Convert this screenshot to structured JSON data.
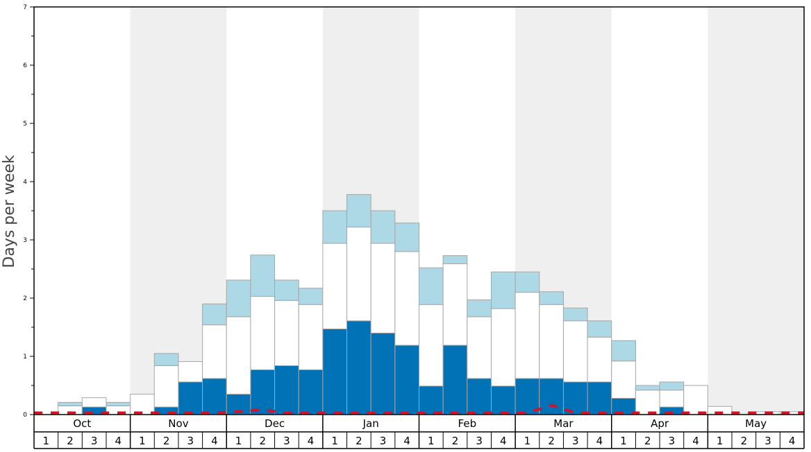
{
  "chart_data": {
    "type": "bar",
    "ylabel": "Days per week",
    "ylim": [
      0,
      7
    ],
    "y_ticks": [
      "0",
      "1",
      "2",
      "3",
      "4",
      "5",
      "6",
      "7"
    ],
    "months": [
      "Oct",
      "Nov",
      "Dec",
      "Jan",
      "Feb",
      "Mar",
      "Apr",
      "May"
    ],
    "week_labels": [
      "1",
      "2",
      "3",
      "4"
    ],
    "shaded_months": [
      "Nov",
      "Jan",
      "Mar",
      "May"
    ],
    "stacked": true,
    "series": [
      {
        "color": "#0072b5",
        "values": [
          0,
          0,
          0.13,
          0,
          0,
          0.13,
          0.56,
          0.62,
          0.35,
          0.77,
          0.84,
          0.77,
          1.47,
          1.61,
          1.4,
          1.19,
          0.49,
          1.19,
          0.62,
          0.49,
          0.62,
          0.62,
          0.56,
          0.56,
          0.28,
          0,
          0.13,
          0,
          0,
          0,
          0,
          0
        ]
      },
      {
        "color": "#ffffff",
        "values": [
          0,
          0.15,
          0.16,
          0.15,
          0.35,
          0.71,
          0.35,
          0.92,
          1.33,
          1.26,
          1.12,
          1.12,
          1.47,
          1.61,
          1.54,
          1.61,
          1.4,
          1.4,
          1.06,
          1.33,
          1.48,
          1.27,
          1.05,
          0.77,
          0.64,
          0.42,
          0.29,
          0.5,
          0.14,
          0,
          0.05,
          0.05
        ]
      },
      {
        "color": "#add8e6",
        "values": [
          0,
          0.06,
          0,
          0.06,
          0,
          0.21,
          0,
          0.36,
          0.63,
          0.71,
          0.35,
          0.28,
          0.56,
          0.56,
          0.56,
          0.49,
          0.63,
          0.14,
          0.29,
          0.63,
          0.35,
          0.22,
          0.22,
          0.28,
          0.35,
          0.08,
          0.14,
          0,
          0,
          0,
          0,
          0
        ]
      }
    ],
    "dashed_line": {
      "color": "#d0142c",
      "values": [
        0.03,
        0.03,
        0.03,
        0.03,
        0.03,
        0.03,
        0.03,
        0.03,
        0.05,
        0.08,
        0.03,
        0.03,
        0.03,
        0.03,
        0.03,
        0.03,
        0.03,
        0.03,
        0.03,
        0.03,
        0.03,
        0.16,
        0.03,
        0.03,
        0.03,
        0.03,
        0.03,
        0.03,
        0.03,
        0.03,
        0.03,
        0.03
      ]
    }
  }
}
